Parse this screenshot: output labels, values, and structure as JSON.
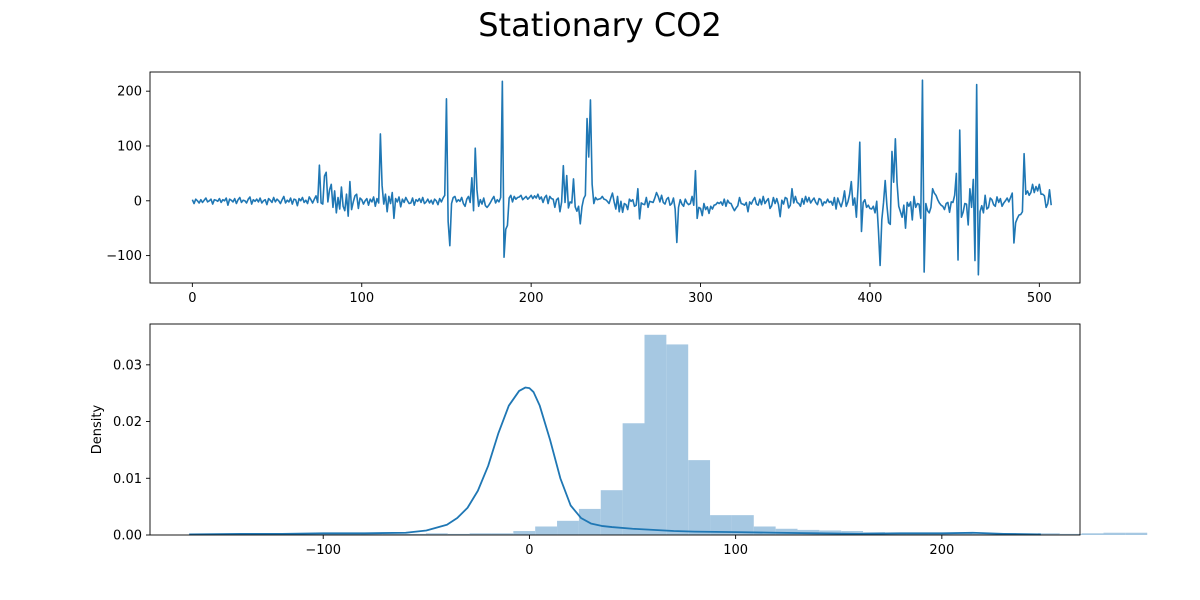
{
  "title": "Stationary CO2",
  "colors": {
    "line": "#1f77b4",
    "hist": "#a6c8e2",
    "axes": "#000000",
    "background": "#ffffff"
  },
  "chart_data": [
    {
      "type": "line",
      "title": "",
      "xlabel": "",
      "ylabel": "",
      "xlim": [
        -25,
        524
      ],
      "ylim": [
        -150,
        235
      ],
      "xticks": [
        0,
        100,
        200,
        300,
        400,
        500
      ],
      "yticks": [
        -100,
        0,
        100,
        200
      ],
      "grid": false,
      "series": [
        {
          "values": [
            2,
            -5,
            3,
            0,
            -4,
            2,
            -3,
            1,
            5,
            -2,
            0,
            3,
            -6,
            2,
            1,
            -1,
            4,
            -3,
            2,
            0,
            5,
            -8,
            3,
            1,
            -2,
            4,
            -5,
            2,
            6,
            -3,
            1,
            0,
            -4,
            3,
            7,
            -6,
            2,
            -1,
            3,
            -2,
            5,
            -4,
            0,
            2,
            -7,
            4,
            1,
            -3,
            6,
            -2,
            3,
            0,
            -5,
            2,
            8,
            -4,
            1,
            -2,
            5,
            -6,
            3,
            2,
            -9,
            4,
            0,
            6,
            -3,
            1,
            -5,
            7,
            2,
            -4,
            3,
            9,
            -3,
            65,
            -4,
            -6,
            45,
            52,
            -2,
            20,
            30,
            -12,
            18,
            -22,
            6,
            -15,
            25,
            -10,
            -18,
            12,
            -28,
            35,
            -16,
            -2,
            9,
            12,
            -14,
            5,
            2,
            -6,
            0,
            4,
            -8,
            3,
            -2,
            7,
            -10,
            4,
            -4,
            122,
            28,
            -6,
            12,
            -20,
            8,
            -5,
            15,
            -32,
            4,
            -2,
            7,
            -11,
            3,
            -3,
            6,
            0,
            -5,
            -4,
            5,
            -8,
            2,
            -1,
            4,
            -3,
            6,
            -5,
            -2,
            3,
            -4,
            1,
            -6,
            3,
            0,
            -7,
            4,
            -2,
            5,
            10,
            186,
            -38,
            -82,
            -5,
            6,
            8,
            -2,
            2,
            -1,
            6,
            -5,
            -10,
            3,
            8,
            -3,
            42,
            -18,
            96,
            20,
            -10,
            2,
            -6,
            5,
            -9,
            -12,
            -8,
            -3,
            3,
            8,
            -4,
            2,
            -2,
            6,
            218,
            -103,
            -52,
            -45,
            5,
            10,
            -2,
            8,
            3,
            6,
            7,
            10,
            2,
            5,
            8,
            3,
            6,
            10,
            4,
            9,
            5,
            12,
            3,
            7,
            -3,
            6,
            10,
            -5,
            8,
            4,
            3,
            -12,
            2,
            5,
            -20,
            -2,
            64,
            -3,
            46,
            -13,
            -2,
            -4,
            40,
            -11,
            -19,
            -10,
            -42,
            -11,
            4,
            10,
            150,
            80,
            184,
            30,
            -5,
            6,
            2,
            3,
            4,
            8,
            3,
            2,
            -1,
            -5,
            5,
            14,
            -2,
            -15,
            8,
            -20,
            -1,
            -21,
            -5,
            -7,
            -16,
            3,
            -1,
            2,
            -10,
            -8,
            22,
            -33,
            -4,
            -6,
            -7,
            6,
            -12,
            -1,
            -2,
            -3,
            5,
            15,
            8,
            -2,
            10,
            -3,
            -6,
            3,
            6,
            -8,
            -5,
            5,
            -15,
            -76,
            -12,
            2,
            -6,
            -10,
            3,
            -4,
            -7,
            -5,
            8,
            -8,
            55,
            -32,
            -12,
            -14,
            -27,
            -5,
            -16,
            -11,
            -23,
            -10,
            -15,
            -8,
            -7,
            -3,
            -5,
            -2,
            -8,
            3,
            -10,
            1,
            -4,
            -5,
            -12,
            -18,
            -13,
            -9,
            6,
            -5,
            -6,
            -8,
            -3,
            -20,
            -2,
            -6,
            1,
            6,
            -6,
            -8,
            3,
            -7,
            8,
            -5,
            0,
            4,
            -14,
            -9,
            6,
            -5,
            4,
            -7,
            -29,
            1,
            -6,
            6,
            4,
            -13,
            -8,
            22,
            -4,
            8,
            -3,
            -5,
            -10,
            4,
            -6,
            8,
            -2,
            6,
            -4,
            1,
            5,
            -3,
            -7,
            4,
            2,
            -9,
            -2,
            -4,
            3,
            -3,
            -1,
            -8,
            6,
            -15,
            5,
            -4,
            -11,
            0,
            18,
            -10,
            -2,
            12,
            35,
            -8,
            5,
            -30,
            27,
            107,
            -56,
            -3,
            2,
            -12,
            -8,
            -14,
            -15,
            -10,
            -22,
            -1,
            -54,
            -118,
            -35,
            -4,
            37,
            -8,
            -40,
            -43,
            90,
            34,
            113,
            33,
            -10,
            -20,
            -30,
            -8,
            -50,
            -3,
            -10,
            -2,
            -35,
            8,
            -12,
            -5,
            -6,
            -32,
            220,
            -130,
            -5,
            -18,
            -22,
            -12,
            22,
            14,
            10,
            2,
            -4,
            -8,
            -10,
            -16,
            -5,
            -3,
            -21,
            -2,
            -3,
            10,
            50,
            -108,
            129,
            -30,
            -21,
            -5,
            -6,
            -44,
            22,
            -12,
            39,
            -109,
            212,
            -135,
            -20,
            -9,
            -22,
            10,
            -15,
            -12,
            5,
            2,
            -7,
            -10,
            7,
            -3,
            4,
            -10,
            -4,
            0,
            5,
            -2,
            6,
            14,
            -77,
            -40,
            -32,
            -26,
            -25,
            -20,
            86,
            12,
            18,
            10,
            15,
            30,
            15,
            26,
            18,
            30,
            12,
            12,
            9,
            -12,
            -5,
            20,
            -8
          ]
        }
      ]
    },
    {
      "type": "histogram",
      "title": "",
      "xlabel": "",
      "ylabel": "Density",
      "xlim": [
        -184,
        267
      ],
      "ylim": [
        0,
        0.0372
      ],
      "xticks": [
        -100,
        0,
        100,
        200
      ],
      "yticks": [
        0.0,
        0.01,
        0.02,
        0.03
      ],
      "ytick_labels": [
        "0.00",
        "0.01",
        "0.02",
        "0.03"
      ],
      "grid": false,
      "bins": {
        "start": -135,
        "width": 10.6,
        "heights": [
          0.0003,
          0.0003,
          0.0002,
          0.0003,
          0.0003,
          0.0002,
          0.0002,
          0.0002,
          0.0003,
          0.0002,
          0.0003,
          0.0003,
          0.0007,
          0.0015,
          0.0025,
          0.0046,
          0.0079,
          0.0197,
          0.0353,
          0.0336,
          0.0132,
          0.0035,
          0.0035,
          0.0015,
          0.0011,
          0.0009,
          0.0008,
          0.0007,
          0.0005,
          0.0004,
          0.0004,
          0.0003,
          0.0004,
          0.0002,
          0.0003,
          0.0002,
          0.0003,
          0.0002,
          0.0003,
          0.0004,
          0.0004
        ]
      },
      "kde": {
        "x": [
          -165,
          -140,
          -120,
          -100,
          -80,
          -60,
          -50,
          -40,
          -35,
          -30,
          -25,
          -20,
          -15,
          -10,
          -5,
          -2,
          0,
          2,
          5,
          10,
          15,
          20,
          25,
          30,
          35,
          40,
          50,
          60,
          70,
          80,
          100,
          120,
          140,
          160,
          180,
          200,
          215,
          230,
          248
        ],
        "y": [
          0.0001,
          0.0002,
          0.0002,
          0.0003,
          0.0003,
          0.0004,
          0.0008,
          0.0018,
          0.003,
          0.0048,
          0.0078,
          0.0122,
          0.018,
          0.0228,
          0.0254,
          0.026,
          0.0259,
          0.0252,
          0.0228,
          0.0168,
          0.01,
          0.0052,
          0.003,
          0.002,
          0.0016,
          0.0014,
          0.0011,
          0.0009,
          0.0007,
          0.0006,
          0.0005,
          0.0004,
          0.0003,
          0.0002,
          0.0003,
          0.0003,
          0.0004,
          0.0002,
          0.0001
        ]
      }
    }
  ]
}
